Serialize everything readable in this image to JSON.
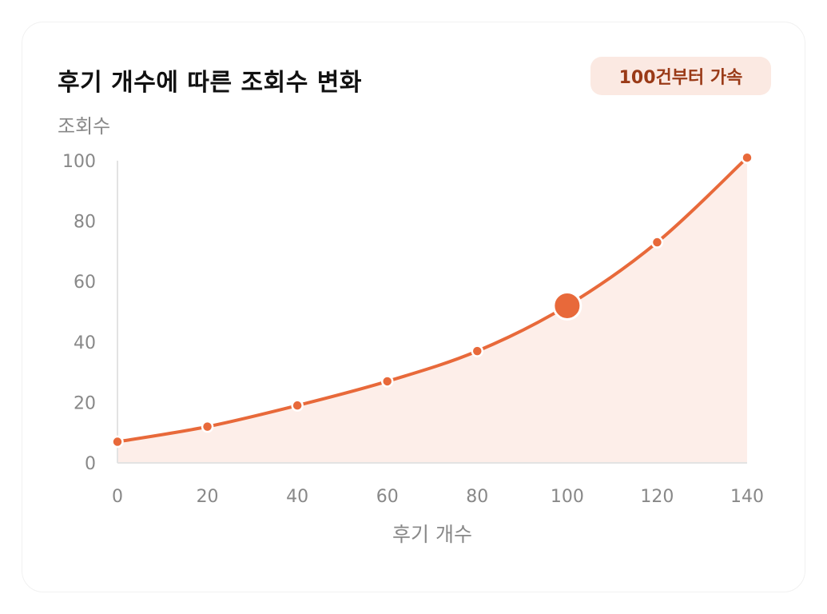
{
  "card": {
    "title": "후기 개수에 따른 조회수 변화",
    "badge": "100건부터 가속"
  },
  "colors": {
    "accent": "#e8693a",
    "area_fill": "#fdeee9",
    "badge_bg": "#fbe9e2",
    "badge_text": "#9a3a17",
    "axis_text": "#888888",
    "axis_line": "#e3e3e3"
  },
  "chart_data": {
    "type": "area",
    "title": "후기 개수에 따른 조회수 변화",
    "xlabel": "후기 개수",
    "ylabel": "조회수",
    "x": [
      0,
      20,
      40,
      60,
      80,
      100,
      120,
      140
    ],
    "series": [
      {
        "values": [
          7,
          12,
          19,
          27,
          37,
          52,
          73,
          101
        ]
      }
    ],
    "highlight_x": 100,
    "xlim": [
      0,
      140
    ],
    "ylim": [
      0,
      100
    ],
    "xticks": [
      "0",
      "20",
      "40",
      "60",
      "80",
      "100",
      "120",
      "140"
    ],
    "yticks": [
      "0",
      "20",
      "40",
      "60",
      "80",
      "100"
    ],
    "grid": false,
    "legend": "none"
  }
}
